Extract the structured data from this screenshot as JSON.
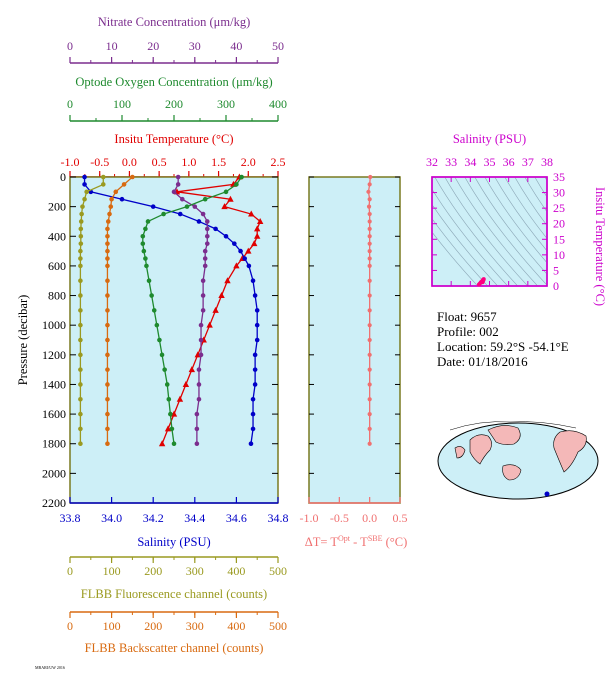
{
  "colors": {
    "nitrate": "#7b2d8e",
    "oxygen": "#1e8a2e",
    "temperature": "#e00000",
    "salinity": "#0000c8",
    "fluorescence": "#9a9a20",
    "backscatter": "#d86a10",
    "delta_t": "#f07070",
    "ts_axis": "#cc00cc",
    "panel_bg": "#cdeff7"
  },
  "axes": {
    "nitrate": {
      "label": "Nitrate Concentration (μm/kg)",
      "ticks": [
        "0",
        "10",
        "20",
        "30",
        "40",
        "50"
      ],
      "min": 0,
      "max": 50
    },
    "oxygen": {
      "label": "Optode Oxygen Concentration (μm/kg)",
      "ticks": [
        "0",
        "100",
        "200",
        "300",
        "400"
      ],
      "min": 0,
      "max": 400
    },
    "temperature": {
      "label": "Insitu Temperature (°C)",
      "ticks": [
        "-1.0",
        "-0.5",
        "0.0",
        "0.5",
        "1.0",
        "1.5",
        "2.0",
        "2.5"
      ],
      "min": -1.0,
      "max": 2.5
    },
    "pressure": {
      "label": "Pressure (decibar)",
      "ticks": [
        "0",
        "200",
        "400",
        "600",
        "800",
        "1000",
        "1200",
        "1400",
        "1600",
        "1800",
        "2000",
        "2200"
      ],
      "min": 0,
      "max": 2200
    },
    "salinity": {
      "label": "Salinity (PSU)",
      "ticks": [
        "33.8",
        "34.0",
        "34.2",
        "34.4",
        "34.6",
        "34.8"
      ],
      "min": 33.8,
      "max": 34.8
    },
    "fluorescence": {
      "label": "FLBB Fluorescence channel (counts)",
      "ticks": [
        "0",
        "100",
        "200",
        "300",
        "400",
        "500"
      ],
      "min": 0,
      "max": 500
    },
    "backscatter": {
      "label": "FLBB Backscatter channel (counts)",
      "ticks": [
        "0",
        "100",
        "200",
        "300",
        "400",
        "500"
      ],
      "min": 0,
      "max": 500
    },
    "delta_t": {
      "label_main": "ΔT= T",
      "sup1": "Opt",
      "label_mid": " - T",
      "sup2": "SBE",
      "label_unit": " (°C)",
      "ticks": [
        "-1.0",
        "-0.5",
        "0.0",
        "0.5"
      ],
      "min": -1.0,
      "max": 0.5
    },
    "ts_salinity": {
      "label": "Salinity (PSU)",
      "ticks": [
        "32",
        "33",
        "34",
        "35",
        "36",
        "37",
        "38"
      ],
      "min": 32,
      "max": 38
    },
    "ts_temperature": {
      "label": "Insitu Temperature (°C)",
      "ticks": [
        "0",
        "5",
        "10",
        "15",
        "20",
        "25",
        "30",
        "35"
      ],
      "min": 0,
      "max": 35
    }
  },
  "info": {
    "float": "Float:  9657",
    "profile": "Profile:  002",
    "location": "Location:  59.2°S  -54.1°E",
    "date": "Date:  01/18/2016"
  },
  "footer_note": "MBARI/UW 2016",
  "chart_data": {
    "type": "scatter",
    "pressure_levels": [
      0,
      50,
      100,
      150,
      200,
      250,
      300,
      350,
      400,
      450,
      500,
      550,
      600,
      700,
      800,
      900,
      1000,
      1100,
      1200,
      1300,
      1400,
      1500,
      1600,
      1700,
      1800
    ],
    "series": [
      {
        "name": "Insitu Temperature",
        "unit": "°C",
        "values": [
          1.85,
          1.75,
          0.8,
          1.7,
          1.6,
          2.05,
          2.2,
          2.15,
          2.15,
          2.1,
          2.0,
          1.9,
          1.8,
          1.65,
          1.55,
          1.45,
          1.35,
          1.25,
          1.15,
          1.05,
          0.95,
          0.85,
          0.75,
          0.65,
          0.55
        ]
      },
      {
        "name": "Salinity",
        "unit": "PSU",
        "values": [
          33.87,
          33.87,
          33.9,
          34.05,
          34.2,
          34.33,
          34.42,
          34.5,
          34.55,
          34.59,
          34.62,
          34.64,
          34.66,
          34.68,
          34.69,
          34.7,
          34.7,
          34.7,
          34.69,
          34.69,
          34.69,
          34.68,
          34.68,
          34.68,
          34.67
        ]
      },
      {
        "name": "Nitrate Concentration",
        "unit": "μm/kg",
        "values": [
          26,
          26,
          25,
          27,
          30,
          32,
          33,
          33,
          33,
          33,
          32.5,
          32.5,
          32.5,
          32,
          32,
          32,
          31.5,
          31.5,
          31.5,
          31,
          31,
          31,
          30.5,
          30.5,
          30.5
        ]
      },
      {
        "name": "Optode Oxygen Concentration",
        "unit": "μm/kg",
        "values": [
          330,
          320,
          300,
          260,
          225,
          180,
          150,
          145,
          140,
          140,
          142,
          145,
          147,
          152,
          157,
          162,
          167,
          172,
          177,
          182,
          187,
          190,
          193,
          196,
          200
        ]
      },
      {
        "name": "FLBB Fluorescence",
        "unit": "counts",
        "values": [
          80,
          80,
          40,
          35,
          30,
          28,
          27,
          26,
          26,
          26,
          25,
          25,
          25,
          25,
          25,
          25,
          25,
          25,
          25,
          25,
          25,
          25,
          25,
          25,
          25
        ]
      },
      {
        "name": "FLBB Backscatter",
        "unit": "counts",
        "values": [
          150,
          130,
          110,
          100,
          98,
          95,
          92,
          90,
          90,
          90,
          90,
          90,
          90,
          90,
          90,
          90,
          90,
          90,
          90,
          90,
          90,
          90,
          90,
          90,
          90
        ]
      },
      {
        "name": "ΔT",
        "unit": "°C",
        "values": [
          0.01,
          0.0,
          -0.02,
          0.0,
          -0.01,
          0.0,
          0.0,
          0.0,
          0.0,
          0.0,
          0.0,
          0.0,
          0.0,
          0.0,
          0.0,
          0.0,
          0.0,
          0.0,
          0.0,
          0.0,
          0.0,
          0.0,
          0.0,
          0.0,
          0.0
        ]
      }
    ],
    "ts_diagram": {
      "salinity": [
        34.45,
        34.5,
        34.55,
        34.6,
        34.65,
        34.68,
        34.7,
        34.68,
        34.66,
        34.64
      ],
      "temperature": [
        0.5,
        0.8,
        1.2,
        1.5,
        1.8,
        2.1,
        2.2,
        1.9,
        1.6,
        1.2
      ]
    },
    "xlabel": "Salinity (PSU)",
    "ylabel": "Pressure (decibar)",
    "ylim": [
      0,
      2200
    ],
    "grid": false
  }
}
